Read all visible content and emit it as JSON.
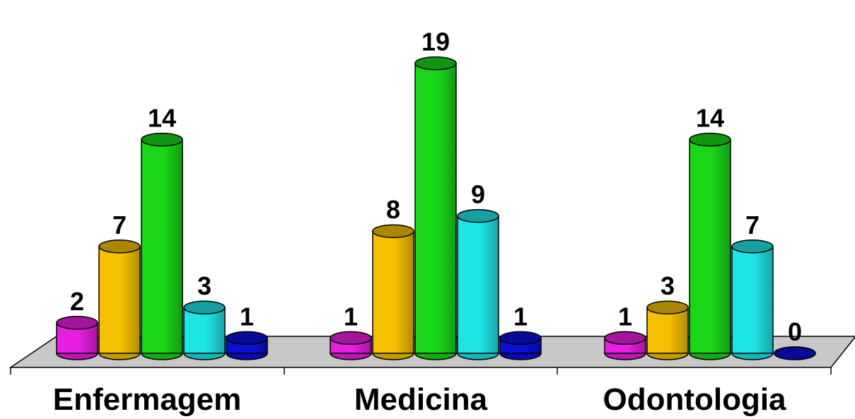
{
  "chart_data": {
    "type": "bar",
    "categories": [
      "Enfermagem",
      "Medicina",
      "Odontologia"
    ],
    "series": [
      {
        "values": [
          2,
          1,
          1
        ],
        "color": "#e81ee0"
      },
      {
        "values": [
          7,
          8,
          3
        ],
        "color": "#f4c000"
      },
      {
        "values": [
          14,
          19,
          14
        ],
        "color": "#19d619"
      },
      {
        "values": [
          3,
          9,
          7
        ],
        "color": "#1fe4e6"
      },
      {
        "values": [
          1,
          1,
          0
        ],
        "color": "#0a10d8"
      }
    ],
    "ylim": [
      0,
      19
    ],
    "grid": false,
    "legend": "none",
    "floor_color": "#c8c8c8"
  }
}
